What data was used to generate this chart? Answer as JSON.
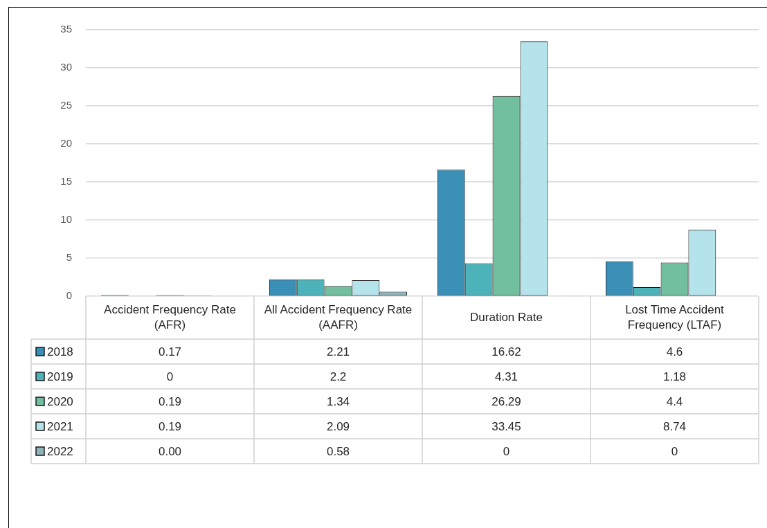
{
  "chart_data": {
    "type": "bar",
    "categories": [
      "Accident Frequency Rate (AFR)",
      "All Accident Frequency Rate (AAFR)",
      "Duration Rate",
      "Lost Time Accident Frequency (LTAF)"
    ],
    "series": [
      {
        "name": "2018",
        "color": "#3a8fb7",
        "values": [
          0.17,
          2.21,
          16.62,
          4.6
        ],
        "value_labels": [
          "0.17",
          "2.21",
          "16.62",
          "4.6"
        ]
      },
      {
        "name": "2019",
        "color": "#4db3bb",
        "values": [
          0,
          2.2,
          4.31,
          1.18
        ],
        "value_labels": [
          "0",
          "2.2",
          "4.31",
          "1.18"
        ]
      },
      {
        "name": "2020",
        "color": "#72bfa0",
        "values": [
          0.19,
          1.34,
          26.29,
          4.4
        ],
        "value_labels": [
          "0.19",
          "1.34",
          "26.29",
          "4.4"
        ]
      },
      {
        "name": "2021",
        "color": "#b5e3ec",
        "values": [
          0.19,
          2.09,
          33.45,
          8.74
        ],
        "value_labels": [
          "0.19",
          "2.09",
          "33.45",
          "8.74"
        ]
      },
      {
        "name": "2022",
        "color": "#8fb3bb",
        "values": [
          0,
          0.58,
          0,
          0
        ],
        "value_labels": [
          "0.00",
          "0.58",
          "0",
          "0"
        ]
      }
    ],
    "ylim": [
      0,
      35
    ],
    "yticks": [
      0,
      5,
      10,
      15,
      20,
      25,
      30,
      35
    ],
    "grid": "y",
    "legend": "bottom"
  }
}
